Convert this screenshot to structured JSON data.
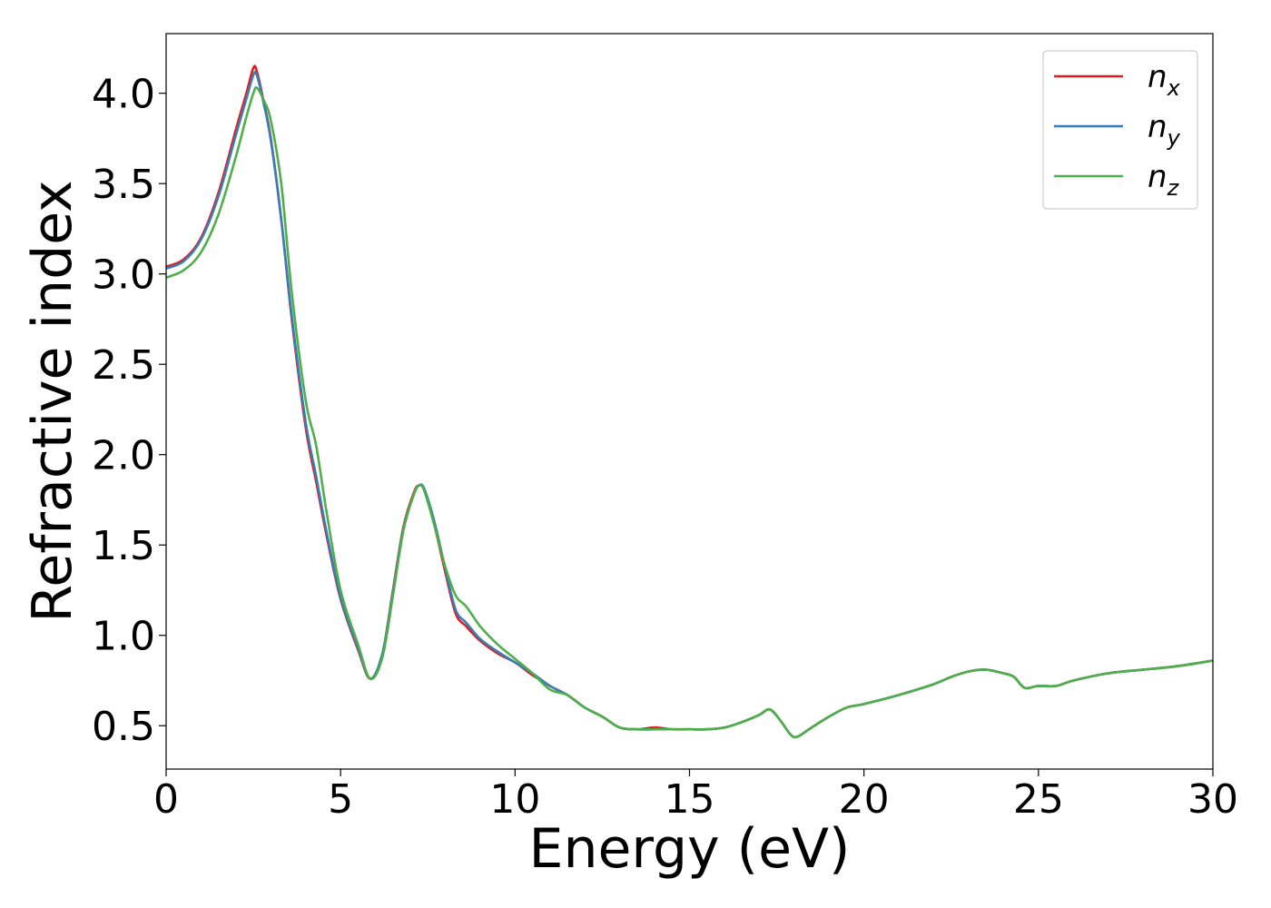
{
  "chart_data": {
    "type": "line",
    "xlabel": "Energy (eV)",
    "ylabel": "Refractive index",
    "xlim": [
      0,
      30
    ],
    "ylim": [
      0.26,
      4.33
    ],
    "xticks": [
      0,
      5,
      10,
      15,
      20,
      25,
      30
    ],
    "xtick_labels": [
      "0",
      "5",
      "10",
      "15",
      "20",
      "25",
      "30"
    ],
    "yticks": [
      0.5,
      1.0,
      1.5,
      2.0,
      2.5,
      3.0,
      3.5,
      4.0
    ],
    "ytick_labels": [
      "0.5",
      "1.0",
      "1.5",
      "2.0",
      "2.5",
      "3.0",
      "3.5",
      "4.0"
    ],
    "grid": false,
    "legend_position": "top-right",
    "series": [
      {
        "name": "n_x",
        "label_base": "n",
        "label_sub": "x",
        "color": "#e41a1c",
        "x": [
          0,
          0.5,
          1.0,
          1.5,
          2.0,
          2.3,
          2.5,
          2.6,
          2.8,
          3.0,
          3.3,
          3.6,
          4.0,
          4.3,
          4.6,
          5.0,
          5.5,
          5.85,
          6.2,
          6.5,
          6.8,
          7.1,
          7.25,
          7.4,
          7.7,
          8.0,
          8.3,
          8.6,
          9.0,
          9.5,
          10.0,
          10.5,
          11.0,
          11.5,
          12.0,
          12.5,
          13.0,
          13.5,
          14.0,
          14.5,
          15.0,
          15.5,
          16.0,
          16.5,
          17.0,
          17.3,
          17.6,
          17.9,
          18.1,
          18.5,
          19.0,
          19.5,
          20.0,
          21.0,
          22.0,
          22.5,
          23.0,
          23.5,
          24.0,
          24.3,
          24.6,
          25.0,
          25.5,
          26.0,
          27.0,
          28.0,
          29.0,
          30.0
        ],
        "y": [
          3.04,
          3.08,
          3.2,
          3.45,
          3.8,
          4.0,
          4.14,
          4.12,
          3.95,
          3.75,
          3.3,
          2.75,
          2.15,
          1.85,
          1.55,
          1.2,
          0.92,
          0.76,
          0.9,
          1.25,
          1.6,
          1.79,
          1.83,
          1.8,
          1.6,
          1.35,
          1.12,
          1.05,
          0.97,
          0.9,
          0.85,
          0.78,
          0.72,
          0.67,
          0.6,
          0.55,
          0.49,
          0.48,
          0.49,
          0.48,
          0.48,
          0.48,
          0.49,
          0.52,
          0.56,
          0.59,
          0.53,
          0.45,
          0.44,
          0.49,
          0.55,
          0.6,
          0.62,
          0.67,
          0.73,
          0.77,
          0.8,
          0.81,
          0.79,
          0.77,
          0.71,
          0.72,
          0.72,
          0.75,
          0.79,
          0.81,
          0.83,
          0.86
        ]
      },
      {
        "name": "n_y",
        "label_base": "n",
        "label_sub": "y",
        "color": "#377eb8",
        "x": [
          0,
          0.5,
          1.0,
          1.5,
          2.0,
          2.3,
          2.5,
          2.6,
          2.8,
          3.0,
          3.3,
          3.6,
          4.0,
          4.3,
          4.6,
          5.0,
          5.5,
          5.85,
          6.2,
          6.5,
          6.8,
          7.1,
          7.25,
          7.4,
          7.7,
          8.0,
          8.3,
          8.6,
          9.0,
          9.5,
          10.0,
          10.5,
          11.0,
          11.5,
          12.0,
          12.5,
          13.0,
          13.5,
          14.0,
          14.5,
          15.0,
          15.5,
          16.0,
          16.5,
          17.0,
          17.3,
          17.6,
          17.9,
          18.1,
          18.5,
          19.0,
          19.5,
          20.0,
          21.0,
          22.0,
          22.5,
          23.0,
          23.5,
          24.0,
          24.3,
          24.6,
          25.0,
          25.5,
          26.0,
          27.0,
          28.0,
          29.0,
          30.0
        ],
        "y": [
          3.03,
          3.07,
          3.19,
          3.43,
          3.77,
          3.97,
          4.1,
          4.1,
          3.94,
          3.74,
          3.3,
          2.77,
          2.18,
          1.88,
          1.57,
          1.21,
          0.93,
          0.76,
          0.9,
          1.24,
          1.59,
          1.78,
          1.83,
          1.81,
          1.62,
          1.37,
          1.14,
          1.07,
          0.98,
          0.91,
          0.85,
          0.79,
          0.72,
          0.67,
          0.6,
          0.55,
          0.49,
          0.48,
          0.48,
          0.48,
          0.48,
          0.48,
          0.49,
          0.52,
          0.56,
          0.59,
          0.53,
          0.45,
          0.44,
          0.49,
          0.55,
          0.6,
          0.62,
          0.67,
          0.73,
          0.77,
          0.8,
          0.81,
          0.79,
          0.77,
          0.71,
          0.72,
          0.72,
          0.75,
          0.79,
          0.81,
          0.83,
          0.86
        ]
      },
      {
        "name": "n_z",
        "label_base": "n",
        "label_sub": "z",
        "color": "#4daf4a",
        "x": [
          0,
          0.5,
          1.0,
          1.5,
          2.0,
          2.3,
          2.5,
          2.6,
          2.8,
          3.0,
          3.3,
          3.6,
          4.0,
          4.3,
          4.6,
          5.0,
          5.5,
          5.85,
          6.2,
          6.5,
          6.8,
          7.1,
          7.25,
          7.4,
          7.7,
          8.0,
          8.3,
          8.6,
          9.0,
          9.5,
          10.0,
          10.5,
          11.0,
          11.5,
          12.0,
          12.5,
          13.0,
          13.5,
          14.0,
          14.5,
          15.0,
          15.5,
          16.0,
          16.5,
          17.0,
          17.3,
          17.6,
          17.9,
          18.1,
          18.5,
          19.0,
          19.5,
          20.0,
          21.0,
          22.0,
          22.5,
          23.0,
          23.5,
          24.0,
          24.3,
          24.6,
          25.0,
          25.5,
          26.0,
          27.0,
          28.0,
          29.0,
          30.0
        ],
        "y": [
          2.98,
          3.02,
          3.12,
          3.33,
          3.65,
          3.87,
          4.0,
          4.03,
          3.96,
          3.85,
          3.5,
          2.9,
          2.3,
          2.05,
          1.68,
          1.25,
          0.95,
          0.76,
          0.88,
          1.22,
          1.58,
          1.78,
          1.83,
          1.8,
          1.6,
          1.38,
          1.22,
          1.16,
          1.05,
          0.95,
          0.87,
          0.79,
          0.7,
          0.67,
          0.6,
          0.55,
          0.49,
          0.48,
          0.48,
          0.48,
          0.48,
          0.48,
          0.49,
          0.52,
          0.56,
          0.59,
          0.53,
          0.45,
          0.44,
          0.49,
          0.55,
          0.6,
          0.62,
          0.67,
          0.73,
          0.77,
          0.8,
          0.81,
          0.79,
          0.77,
          0.71,
          0.72,
          0.72,
          0.75,
          0.79,
          0.81,
          0.83,
          0.86
        ]
      }
    ]
  }
}
